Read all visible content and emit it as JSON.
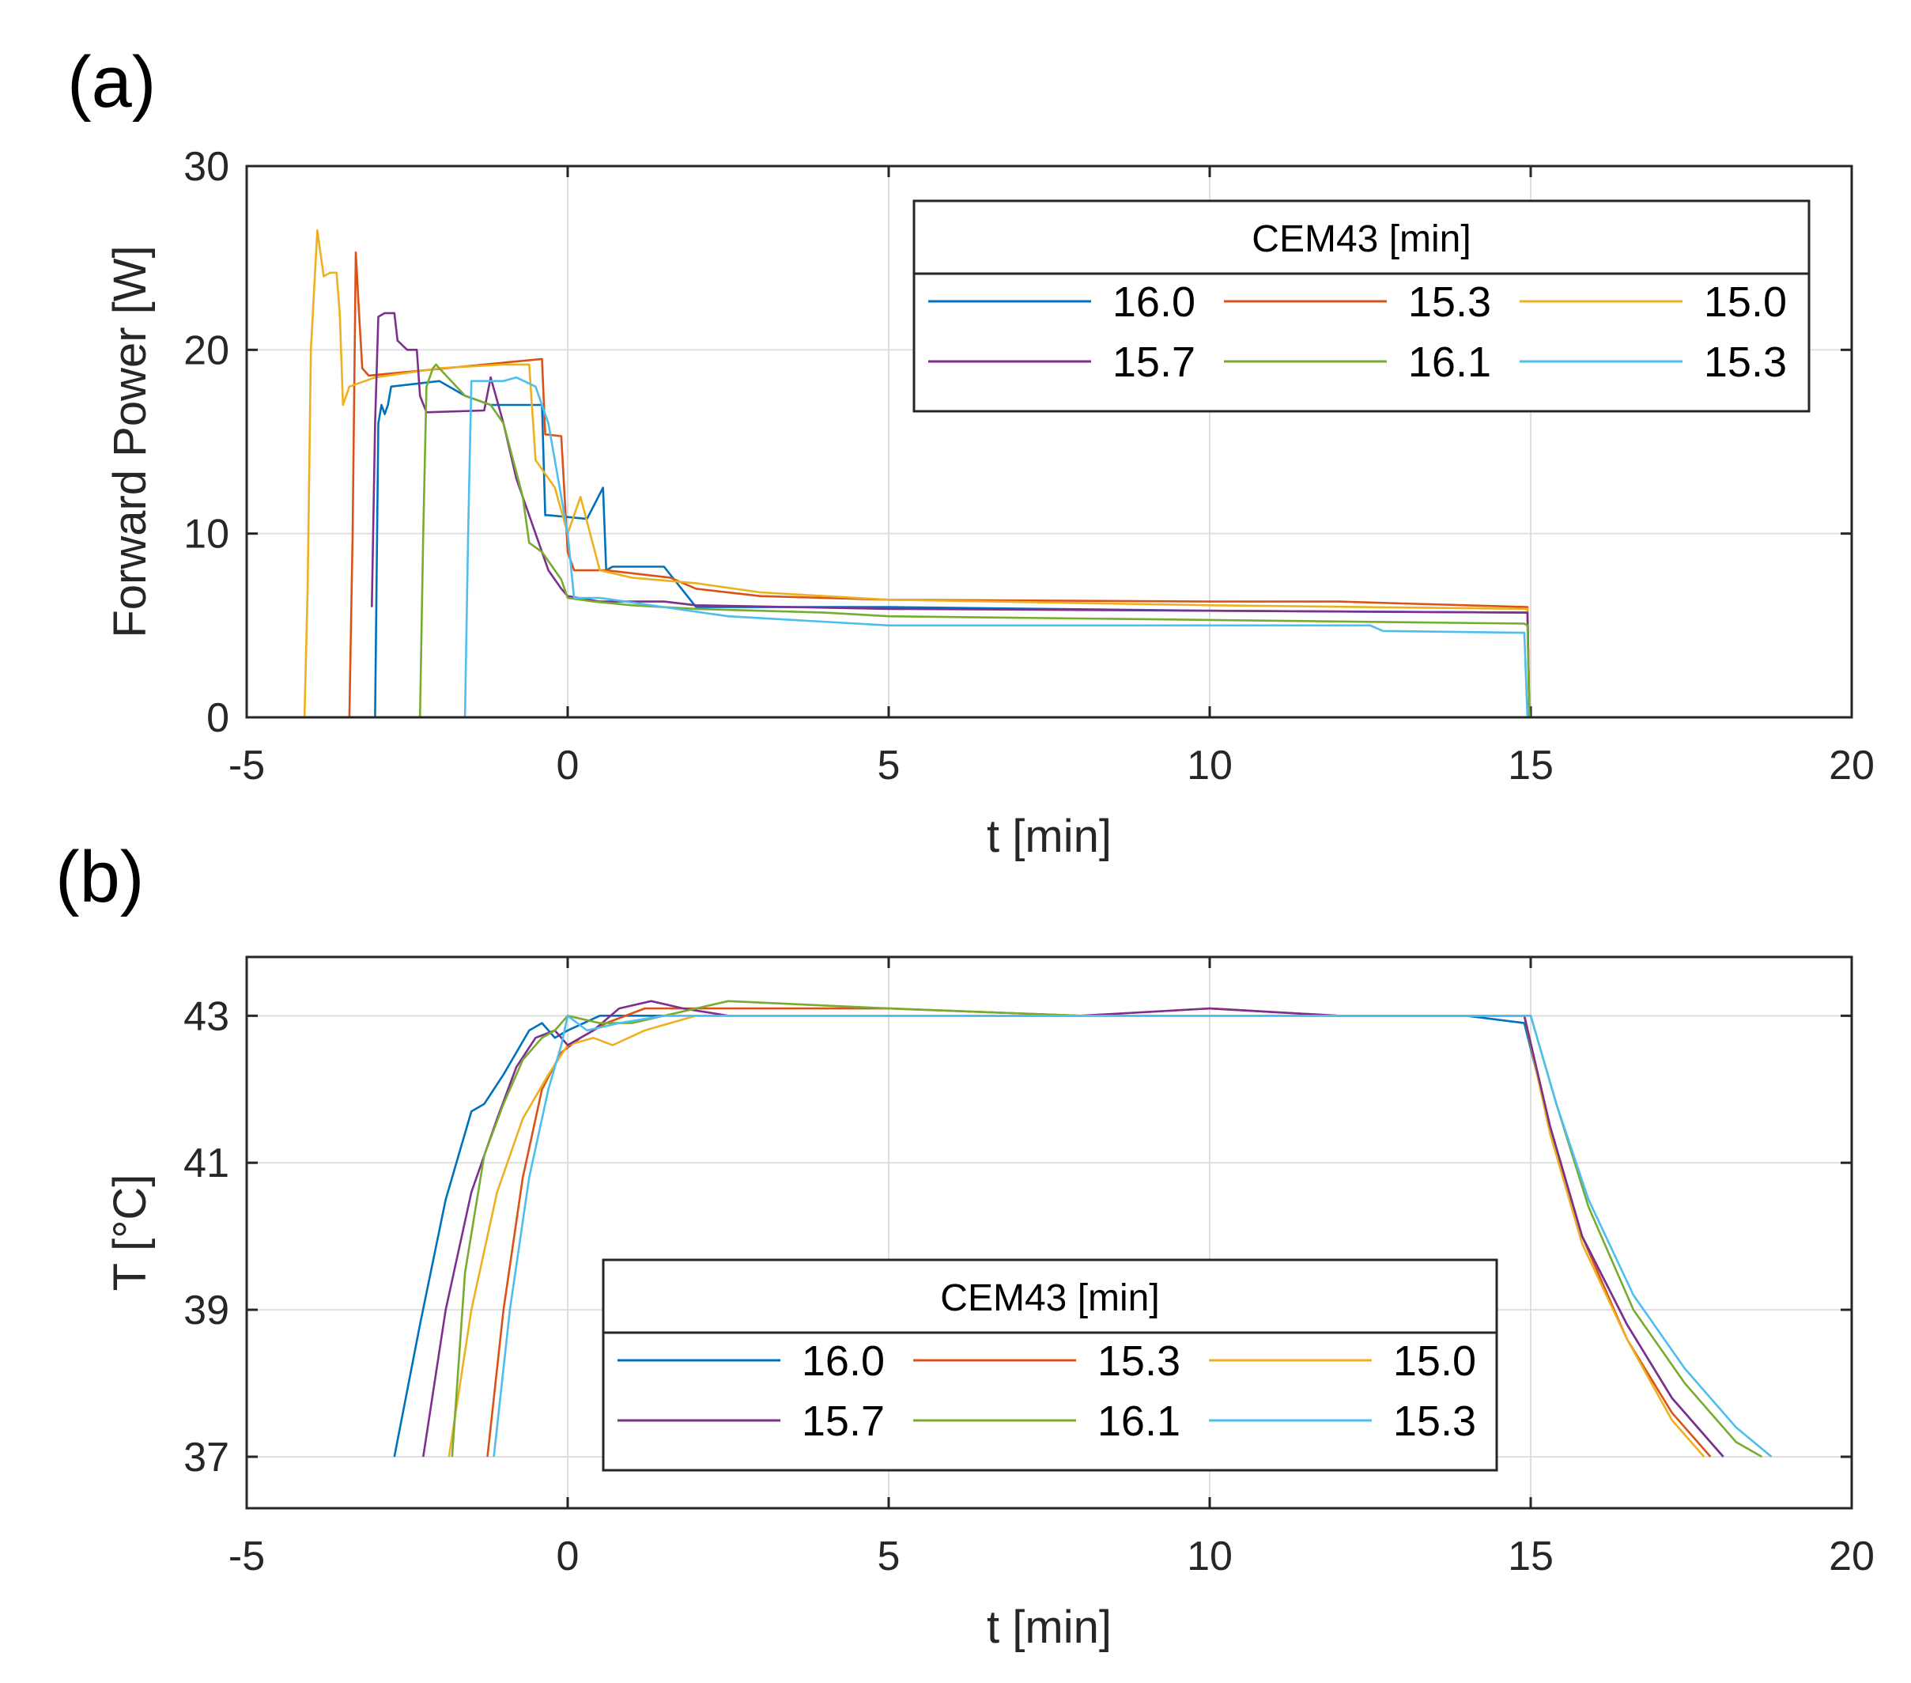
{
  "chart_data": [
    {
      "type": "line",
      "panel_label": "(a)",
      "xlabel": "t [min]",
      "ylabel": "Forward Power [W]",
      "xlim": [
        -5,
        20
      ],
      "ylim": [
        0,
        30
      ],
      "xticks": [
        "-5",
        "0",
        "5",
        "10",
        "15",
        "20"
      ],
      "yticks": [
        "0",
        "10",
        "20",
        "30"
      ],
      "grid": true,
      "legend_placement": "top-right",
      "legend_title": "CEM43 [min]",
      "series": [
        {
          "name": "16.0",
          "color": "#0072BD",
          "x": [
            -3.0,
            -2.95,
            -2.9,
            -2.85,
            -2.8,
            -2.75,
            -2.0,
            -1.6,
            -1.2,
            -0.4,
            -0.35,
            -0.3,
            0.3,
            0.55,
            0.6,
            0.7,
            1.5,
            2.0,
            5.0,
            10.0,
            14.95,
            14.98
          ],
          "y": [
            0,
            16,
            17,
            16.5,
            17,
            18,
            18.3,
            17.5,
            17,
            17,
            11,
            11,
            10.8,
            12.5,
            8,
            8.2,
            8.2,
            6,
            6,
            5.8,
            5.7,
            0
          ]
        },
        {
          "name": "15.3",
          "color": "#D95319",
          "x": [
            -3.4,
            -3.35,
            -3.3,
            -3.25,
            -3.2,
            -3.1,
            -0.4,
            -0.35,
            -0.1,
            0.0,
            0.1,
            0.6,
            1.6,
            2.0,
            3.0,
            5.0,
            10.0,
            12.0,
            13.0,
            14.95,
            14.98
          ],
          "y": [
            0,
            10,
            25.3,
            22,
            19,
            18.6,
            19.5,
            15.4,
            15.3,
            9,
            8,
            8,
            7.6,
            7,
            6.6,
            6.4,
            6.3,
            6.3,
            6.2,
            6.0,
            0
          ]
        },
        {
          "name": "15.0",
          "color": "#EDB120",
          "x": [
            -4.25,
            -4.1,
            -4.05,
            -4.0,
            -3.9,
            -3.8,
            -3.7,
            -3.6,
            -3.55,
            -3.5,
            -3.4,
            -3.0,
            -2.0,
            -1.0,
            -0.6,
            -0.5,
            -0.2,
            0.0,
            0.2,
            0.5,
            1.0,
            2.0,
            3.0,
            5.0,
            10.0,
            14.95,
            14.98
          ],
          "y": [
            0,
            0,
            7,
            20,
            26.5,
            24,
            24.2,
            24.2,
            22,
            17,
            18,
            18.5,
            19,
            19.2,
            19.2,
            14,
            12.5,
            10,
            12,
            8,
            7.6,
            7.3,
            6.8,
            6.4,
            6.1,
            5.9,
            0
          ]
        },
        {
          "name": "15.7",
          "color": "#7E2F8E",
          "x": [
            -3.05,
            -3.0,
            -2.95,
            -2.85,
            -2.7,
            -2.65,
            -2.5,
            -2.35,
            -2.3,
            -2.2,
            -1.3,
            -1.2,
            -1.0,
            -0.8,
            -0.4,
            -0.3,
            -0.1,
            0.0,
            0.5,
            1.5,
            2.0,
            5.0,
            10.0,
            14.95,
            14.98
          ],
          "y": [
            6,
            16,
            21.8,
            22,
            22,
            20.5,
            20,
            20,
            17.5,
            16.6,
            16.7,
            18.5,
            16,
            13,
            9,
            8,
            7,
            6.6,
            6.3,
            6.3,
            6.1,
            5.9,
            5.8,
            5.7,
            0
          ]
        },
        {
          "name": "16.1",
          "color": "#77AC30",
          "x": [
            -2.3,
            -2.25,
            -2.2,
            -2.1,
            -2.05,
            -2.0,
            -1.6,
            -1.2,
            -1.0,
            -0.7,
            -0.6,
            -0.4,
            -0.1,
            0.0,
            0.4,
            1.0,
            2.0,
            4.0,
            5.0,
            10.0,
            14.9,
            14.95,
            14.98
          ],
          "y": [
            0,
            10,
            18,
            19,
            19.2,
            19,
            17.5,
            17,
            16,
            12,
            9.5,
            9,
            7.5,
            6.5,
            6.3,
            6.1,
            5.9,
            5.7,
            5.5,
            5.3,
            5.1,
            5.0,
            0
          ]
        },
        {
          "name": "15.3",
          "color": "#4DBEEE",
          "x": [
            -1.6,
            -1.55,
            -1.5,
            -1.4,
            -1.0,
            -0.8,
            -0.5,
            -0.3,
            0.0,
            0.1,
            0.5,
            1.5,
            2.5,
            5.0,
            10.0,
            12.5,
            12.7,
            14.9,
            14.95
          ],
          "y": [
            0,
            10,
            18.3,
            18.3,
            18.3,
            18.5,
            18,
            16,
            10,
            6.5,
            6.5,
            6.0,
            5.5,
            5.0,
            5.0,
            5.0,
            4.7,
            4.6,
            0
          ]
        }
      ]
    },
    {
      "type": "line",
      "panel_label": "(b)",
      "xlabel": "t [min]",
      "ylabel": "T [°C]",
      "xlim": [
        -5,
        20
      ],
      "ylim": [
        36.3,
        43.8
      ],
      "xticks": [
        "-5",
        "0",
        "5",
        "10",
        "15",
        "20"
      ],
      "yticks": [
        "37",
        "39",
        "41",
        "43"
      ],
      "grid": true,
      "legend_placement": "bottom-center",
      "legend_title": "CEM43 [min]",
      "series": [
        {
          "name": "16.0",
          "color": "#0072BD",
          "x": [
            -2.7,
            -2.3,
            -1.9,
            -1.5,
            -1.3,
            -1.0,
            -0.6,
            -0.4,
            -0.2,
            0.0,
            0.5,
            1.0,
            2.0,
            5.0,
            8.0,
            10.0,
            12.0,
            14.0,
            14.9,
            15.3,
            15.8,
            16.5,
            17.2,
            18.0
          ],
          "y": [
            37.0,
            38.8,
            40.5,
            41.7,
            41.8,
            42.2,
            42.8,
            42.9,
            42.7,
            42.8,
            43.0,
            43.0,
            43.0,
            43.0,
            43.0,
            43.0,
            43.0,
            43.0,
            42.9,
            41.5,
            40.0,
            38.8,
            37.8,
            37.0
          ]
        },
        {
          "name": "15.3",
          "color": "#D95319",
          "x": [
            -1.25,
            -1.0,
            -0.7,
            -0.4,
            -0.1,
            0.2,
            0.6,
            1.2,
            2.0,
            3.0,
            5.0,
            8.0,
            10.0,
            12.0,
            14.0,
            14.9,
            15.3,
            15.8,
            16.5,
            17.2,
            17.8
          ],
          "y": [
            37.0,
            39.0,
            40.8,
            42.0,
            42.5,
            42.7,
            42.9,
            43.1,
            43.1,
            43.1,
            43.1,
            43.0,
            43.1,
            43.0,
            43.0,
            43.0,
            41.5,
            40.0,
            38.6,
            37.6,
            37.0
          ]
        },
        {
          "name": "15.0",
          "color": "#EDB120",
          "x": [
            -1.85,
            -1.5,
            -1.1,
            -0.7,
            -0.3,
            0.0,
            0.4,
            0.7,
            1.2,
            2.0,
            5.0,
            8.0,
            10.0,
            12.0,
            14.0,
            14.9,
            15.3,
            15.8,
            16.5,
            17.2,
            17.7
          ],
          "y": [
            37.0,
            39.0,
            40.6,
            41.6,
            42.2,
            42.6,
            42.7,
            42.6,
            42.8,
            43.0,
            43.0,
            43.0,
            43.0,
            43.0,
            43.0,
            43.0,
            41.4,
            39.9,
            38.6,
            37.5,
            37.0
          ]
        },
        {
          "name": "15.7",
          "color": "#7E2F8E",
          "x": [
            -2.25,
            -1.9,
            -1.5,
            -1.1,
            -0.8,
            -0.5,
            -0.2,
            0.0,
            0.4,
            0.8,
            1.3,
            1.8,
            2.5,
            5.0,
            8.0,
            10.0,
            12.0,
            14.0,
            14.9,
            15.3,
            15.8,
            16.5,
            17.2,
            18.0
          ],
          "y": [
            37.0,
            39.0,
            40.6,
            41.6,
            42.3,
            42.7,
            42.8,
            42.6,
            42.8,
            43.1,
            43.2,
            43.1,
            43.0,
            43.0,
            43.0,
            43.1,
            43.0,
            43.0,
            43.0,
            41.5,
            40.0,
            38.8,
            37.8,
            37.0
          ]
        },
        {
          "name": "16.1",
          "color": "#77AC30",
          "x": [
            -1.8,
            -1.6,
            -1.3,
            -1.0,
            -0.7,
            -0.4,
            -0.2,
            0.0,
            0.5,
            1.0,
            2.0,
            2.5,
            5.0,
            8.0,
            10.0,
            12.0,
            14.0,
            15.0,
            15.4,
            15.9,
            16.6,
            17.4,
            18.2,
            18.6
          ],
          "y": [
            37.0,
            39.5,
            41.1,
            41.8,
            42.4,
            42.7,
            42.8,
            43.0,
            42.9,
            42.9,
            43.1,
            43.2,
            43.1,
            43.0,
            43.0,
            43.0,
            43.0,
            43.0,
            41.8,
            40.4,
            39.0,
            38.0,
            37.2,
            37.0
          ]
        },
        {
          "name": "15.3",
          "color": "#4DBEEE",
          "x": [
            -1.15,
            -0.9,
            -0.6,
            -0.3,
            -0.1,
            0.0,
            0.3,
            0.8,
            1.5,
            2.0,
            5.0,
            8.0,
            10.0,
            12.0,
            14.0,
            15.0,
            15.4,
            15.9,
            16.6,
            17.4,
            18.2,
            18.75
          ],
          "y": [
            37.0,
            39.0,
            40.8,
            42.0,
            42.6,
            43.0,
            42.8,
            42.9,
            43.0,
            43.0,
            43.0,
            43.0,
            43.0,
            43.0,
            43.0,
            43.0,
            41.8,
            40.5,
            39.2,
            38.2,
            37.4,
            37.0
          ]
        }
      ]
    }
  ]
}
